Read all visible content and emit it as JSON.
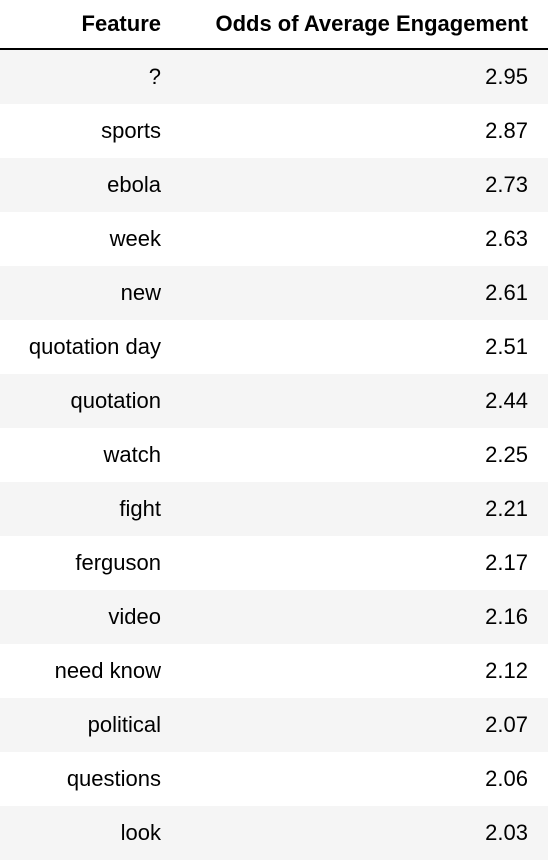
{
  "chart_data": {
    "type": "table",
    "columns": [
      "Feature",
      "Odds of Average Engagement"
    ],
    "rows": [
      {
        "feature": "?",
        "odds": "2.95"
      },
      {
        "feature": "sports",
        "odds": "2.87"
      },
      {
        "feature": "ebola",
        "odds": "2.73"
      },
      {
        "feature": "week",
        "odds": "2.63"
      },
      {
        "feature": "new",
        "odds": "2.61"
      },
      {
        "feature": "quotation day",
        "odds": "2.51"
      },
      {
        "feature": "quotation",
        "odds": "2.44"
      },
      {
        "feature": "watch",
        "odds": "2.25"
      },
      {
        "feature": "fight",
        "odds": "2.21"
      },
      {
        "feature": "ferguson",
        "odds": "2.17"
      },
      {
        "feature": "video",
        "odds": "2.16"
      },
      {
        "feature": "need know",
        "odds": "2.12"
      },
      {
        "feature": "political",
        "odds": "2.07"
      },
      {
        "feature": "questions",
        "odds": "2.06"
      },
      {
        "feature": "look",
        "odds": "2.03"
      }
    ]
  },
  "colors": {
    "row_stripe": "#f5f5f5",
    "row_plain": "#ffffff",
    "header_rule": "#000000"
  }
}
